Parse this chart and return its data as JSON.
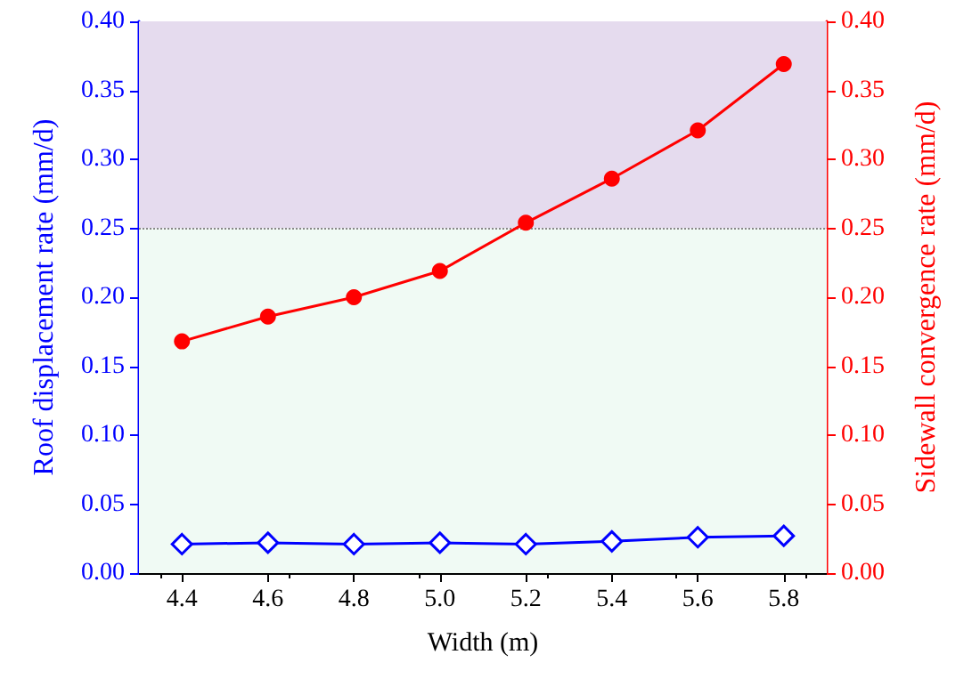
{
  "chart_data": {
    "type": "line",
    "xlabel": "Width (m)",
    "ylabel": "Roof displacement rate (mm/d)",
    "y2label": "Sidewall convergence rate (mm/d)",
    "x": [
      4.4,
      4.6,
      4.8,
      5.0,
      5.2,
      5.4,
      5.6,
      5.8
    ],
    "series": [
      {
        "color": "#0000ff",
        "marker": "diamond",
        "values": [
          0.021,
          0.022,
          0.021,
          0.022,
          0.021,
          0.023,
          0.026,
          0.027
        ]
      },
      {
        "color": "#ff0000",
        "marker": "circle",
        "axis": "y2",
        "values": [
          0.168,
          0.186,
          0.2,
          0.219,
          0.254,
          0.286,
          0.321,
          0.369
        ]
      }
    ],
    "xlim": [
      4.3,
      5.9
    ],
    "xticks": [
      4.4,
      4.6,
      4.8,
      {
        "value": 5.0,
        "label": "5.0"
      },
      5.2,
      5.4,
      5.6,
      5.8
    ],
    "ylim": [
      0,
      0.4
    ],
    "yticks": [
      {
        "value": 0,
        "label": "0.00"
      },
      {
        "value": 0.05,
        "label": "0.05"
      },
      {
        "value": 0.1,
        "label": "0.10"
      },
      {
        "value": 0.15,
        "label": "0.15"
      },
      {
        "value": 0.2,
        "label": "0.20"
      },
      {
        "value": 0.25,
        "label": "0.25"
      },
      {
        "value": 0.3,
        "label": "0.30"
      },
      {
        "value": 0.35,
        "label": "0.35"
      },
      {
        "value": 0.4,
        "label": "0.40"
      }
    ],
    "y2lim": [
      0,
      0.4
    ],
    "y2ticks": [
      {
        "value": 0,
        "label": "0.00"
      },
      {
        "value": 0.05,
        "label": "0.05"
      },
      {
        "value": 0.1,
        "label": "0.10"
      },
      {
        "value": 0.15,
        "label": "0.15"
      },
      {
        "value": 0.2,
        "label": "0.20"
      },
      {
        "value": 0.25,
        "label": "0.25"
      },
      {
        "value": 0.3,
        "label": "0.30"
      },
      {
        "value": 0.35,
        "label": "0.35"
      },
      {
        "value": 0.4,
        "label": "0.40"
      }
    ],
    "bands": [
      {
        "axis": "y",
        "from": 0,
        "to": 0.25,
        "color": "#f0faf4"
      },
      {
        "axis": "y",
        "from": 0.25,
        "to": 0.4,
        "color": "#e5dbee"
      }
    ],
    "ref_lines": [
      {
        "axis": "y",
        "value": 0.25,
        "color": "#888888",
        "line_style": "dotted"
      }
    ],
    "grid": false,
    "line_style": "solid"
  }
}
